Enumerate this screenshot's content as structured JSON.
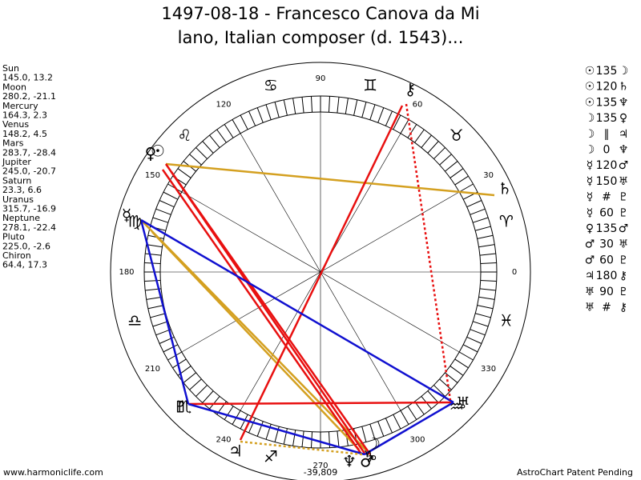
{
  "header": {
    "title_line1": "1497-08-18 - Francesco Canova da Mi",
    "title_line2": "lano, Italian composer (d. 1543)..."
  },
  "planets": [
    {
      "name": "Sun",
      "coords": "145.0, 13.2",
      "glyph": "☉"
    },
    {
      "name": "Moon",
      "coords": "280.2, -21.1",
      "glyph": "☽"
    },
    {
      "name": "Mercury",
      "coords": "164.3, 2.3",
      "glyph": "☿"
    },
    {
      "name": "Venus",
      "coords": "148.2, 4.5",
      "glyph": "♀"
    },
    {
      "name": "Mars",
      "coords": "283.7, -28.4",
      "glyph": "♂"
    },
    {
      "name": "Jupiter",
      "coords": "245.0, -20.7",
      "glyph": "♃"
    },
    {
      "name": "Saturn",
      "coords": "23.3, 6.6",
      "glyph": "♄"
    },
    {
      "name": "Uranus",
      "coords": "315.7, -16.9",
      "glyph": "♅"
    },
    {
      "name": "Neptune",
      "coords": "278.1, -22.4",
      "glyph": "♆"
    },
    {
      "name": "Pluto",
      "coords": "225.0, -2.6",
      "glyph": "♇"
    },
    {
      "name": "Chiron",
      "coords": "64.4, 17.3",
      "glyph": "⚷"
    }
  ],
  "aspects": [
    {
      "p1": "☉",
      "aspect": "135",
      "p2": "☽"
    },
    {
      "p1": "☉",
      "aspect": "120",
      "p2": "♄"
    },
    {
      "p1": "☉",
      "aspect": "135",
      "p2": "♆"
    },
    {
      "p1": "☽",
      "aspect": "135",
      "p2": "♀"
    },
    {
      "p1": "☽",
      "aspect": "∥",
      "p2": "♃"
    },
    {
      "p1": "☽",
      "aspect": "0",
      "p2": "♆"
    },
    {
      "p1": "☿",
      "aspect": "120",
      "p2": "♂"
    },
    {
      "p1": "☿",
      "aspect": "150",
      "p2": "♅"
    },
    {
      "p1": "☿",
      "aspect": "#",
      "p2": "♇"
    },
    {
      "p1": "☿",
      "aspect": "60",
      "p2": "♇"
    },
    {
      "p1": "♀",
      "aspect": "135",
      "p2": "♂"
    },
    {
      "p1": "♂",
      "aspect": "30",
      "p2": "♅"
    },
    {
      "p1": "♂",
      "aspect": "60",
      "p2": "♇"
    },
    {
      "p1": "♃",
      "aspect": "180",
      "p2": "⚷"
    },
    {
      "p1": "♅",
      "aspect": "90",
      "p2": "♇"
    },
    {
      "p1": "♅",
      "aspect": "#",
      "p2": "⚷"
    }
  ],
  "wheel": {
    "degree_labels": [
      "0",
      "30",
      "60",
      "90",
      "120",
      "150",
      "180",
      "210",
      "240",
      "270",
      "300",
      "330"
    ],
    "signs": [
      "♈",
      "♉",
      "♊",
      "♋",
      "♌",
      "♍",
      "♎",
      "♏",
      "♐",
      "♑",
      "♒",
      "♓"
    ],
    "bottom_value": "-39,809"
  },
  "footer": {
    "left": "www.harmoniclife.com",
    "right": "AstroChart Patent Pending"
  }
}
